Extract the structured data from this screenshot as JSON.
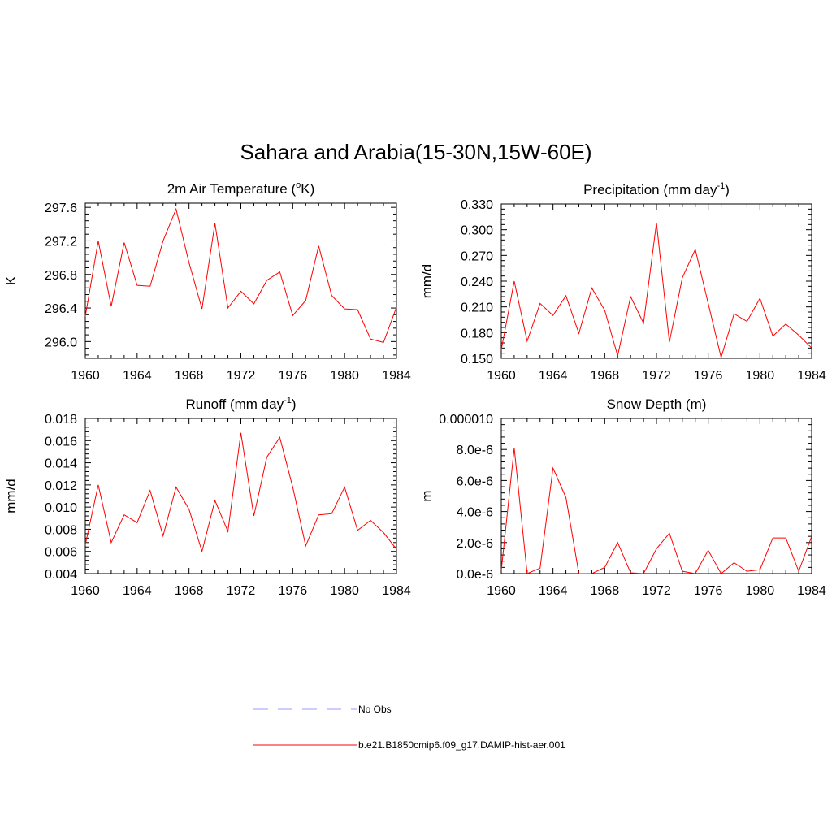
{
  "title": "Sahara and Arabia(15-30N,15W-60E)",
  "colors": {
    "model": "#ff0000",
    "obs": "#9999ff",
    "axes": "#000000"
  },
  "legend": {
    "items": [
      {
        "label": "No Obs",
        "style": "dashed",
        "color": "#9999ff"
      },
      {
        "label": "b.e21.B1850cmip6.f09_g17.DAMIP-hist-aer.001",
        "style": "solid",
        "color": "#ff0000"
      }
    ]
  },
  "chart_data": [
    {
      "type": "line",
      "title": "2m Air Temperature (",
      "title_sup": "o",
      "title_after": "K)",
      "ylabel": "K",
      "xlim": [
        1960,
        1984
      ],
      "ylim": [
        295.8,
        297.65
      ],
      "xticks": [
        1960,
        1964,
        1968,
        1972,
        1976,
        1980,
        1984
      ],
      "yticks": [
        296.0,
        296.4,
        296.8,
        297.2,
        297.6
      ],
      "ytick_labels": [
        "296.0",
        "296.4",
        "296.8",
        "297.2",
        "297.6"
      ],
      "series": [
        {
          "x": [
            1960,
            1961,
            1962,
            1963,
            1964,
            1965,
            1966,
            1967,
            1968,
            1969,
            1970,
            1971,
            1972,
            1973,
            1974,
            1975,
            1976,
            1977,
            1978,
            1979,
            1980,
            1981,
            1982,
            1983,
            1984
          ],
          "values": [
            296.3,
            297.2,
            296.42,
            297.18,
            296.67,
            296.66,
            297.2,
            297.58,
            296.94,
            296.39,
            297.41,
            296.4,
            296.6,
            296.45,
            296.73,
            296.83,
            296.31,
            296.49,
            297.14,
            296.55,
            296.39,
            296.38,
            296.03,
            295.99,
            296.41
          ]
        }
      ]
    },
    {
      "type": "line",
      "title": "Precipitation (mm day",
      "title_sup": "-1",
      "title_after": ")",
      "ylabel": "mm/d",
      "xlim": [
        1960,
        1984
      ],
      "ylim": [
        0.15,
        0.33
      ],
      "xticks": [
        1960,
        1964,
        1968,
        1972,
        1976,
        1980,
        1984
      ],
      "yticks": [
        0.15,
        0.18,
        0.21,
        0.24,
        0.27,
        0.3,
        0.33
      ],
      "ytick_labels": [
        "0.150",
        "0.180",
        "0.210",
        "0.240",
        "0.270",
        "0.300",
        "0.330"
      ],
      "series": [
        {
          "x": [
            1960,
            1961,
            1962,
            1963,
            1964,
            1965,
            1966,
            1967,
            1968,
            1969,
            1970,
            1971,
            1972,
            1973,
            1974,
            1975,
            1976,
            1977,
            1978,
            1979,
            1980,
            1981,
            1982,
            1983,
            1984
          ],
          "values": [
            0.16,
            0.24,
            0.17,
            0.214,
            0.2,
            0.223,
            0.179,
            0.232,
            0.206,
            0.153,
            0.222,
            0.191,
            0.308,
            0.169,
            0.244,
            0.277,
            0.214,
            0.151,
            0.202,
            0.193,
            0.22,
            0.176,
            0.19,
            0.177,
            0.162
          ]
        }
      ]
    },
    {
      "type": "line",
      "title": "Runoff (mm day",
      "title_sup": "-1",
      "title_after": ")",
      "ylabel": "mm/d",
      "xlim": [
        1960,
        1984
      ],
      "ylim": [
        0.004,
        0.018
      ],
      "xticks": [
        1960,
        1964,
        1968,
        1972,
        1976,
        1980,
        1984
      ],
      "yticks": [
        0.004,
        0.006,
        0.008,
        0.01,
        0.012,
        0.014,
        0.016,
        0.018
      ],
      "ytick_labels": [
        "0.004",
        "0.006",
        "0.008",
        "0.010",
        "0.012",
        "0.014",
        "0.016",
        "0.018"
      ],
      "series": [
        {
          "x": [
            1960,
            1961,
            1962,
            1963,
            1964,
            1965,
            1966,
            1967,
            1968,
            1969,
            1970,
            1971,
            1972,
            1973,
            1974,
            1975,
            1976,
            1977,
            1978,
            1979,
            1980,
            1981,
            1982,
            1983,
            1984
          ],
          "values": [
            0.0066,
            0.012,
            0.0068,
            0.0093,
            0.0086,
            0.0115,
            0.0074,
            0.0118,
            0.0098,
            0.006,
            0.0106,
            0.0078,
            0.0167,
            0.0092,
            0.0145,
            0.0163,
            0.0118,
            0.0065,
            0.0093,
            0.0094,
            0.0118,
            0.0079,
            0.0088,
            0.0077,
            0.0062
          ]
        }
      ]
    },
    {
      "type": "line",
      "title": "Snow Depth (m)",
      "title_sup": "",
      "title_after": "",
      "ylabel": "m",
      "xlim": [
        1960,
        1984
      ],
      "ylim": [
        0,
        1e-05
      ],
      "xticks": [
        1960,
        1964,
        1968,
        1972,
        1976,
        1980,
        1984
      ],
      "yticks": [
        0,
        2e-06,
        4e-06,
        6e-06,
        8e-06,
        1e-05
      ],
      "ytick_labels": [
        "0.0e-6",
        "2.0e-6",
        "4.0e-6",
        "6.0e-6",
        "8.0e-6",
        "0.000010"
      ],
      "series": [
        {
          "x": [
            1960,
            1961,
            1962,
            1963,
            1964,
            1965,
            1966,
            1967,
            1968,
            1969,
            1970,
            1971,
            1972,
            1973,
            1974,
            1975,
            1976,
            1977,
            1978,
            1979,
            1980,
            1981,
            1982,
            1983,
            1984
          ],
          "values": [
            2e-07,
            8.1e-06,
            0.0,
            3.5e-07,
            6.8e-06,
            4.9e-06,
            0.0,
            0.0,
            4e-07,
            2e-06,
            5e-08,
            0.0,
            1.6e-06,
            2.6e-06,
            1.5e-07,
            0.0,
            1.5e-06,
            0.0,
            7e-07,
            1.5e-07,
            2.5e-07,
            2.3e-06,
            2.3e-06,
            1.5e-07,
            2.4e-06
          ]
        }
      ]
    }
  ]
}
